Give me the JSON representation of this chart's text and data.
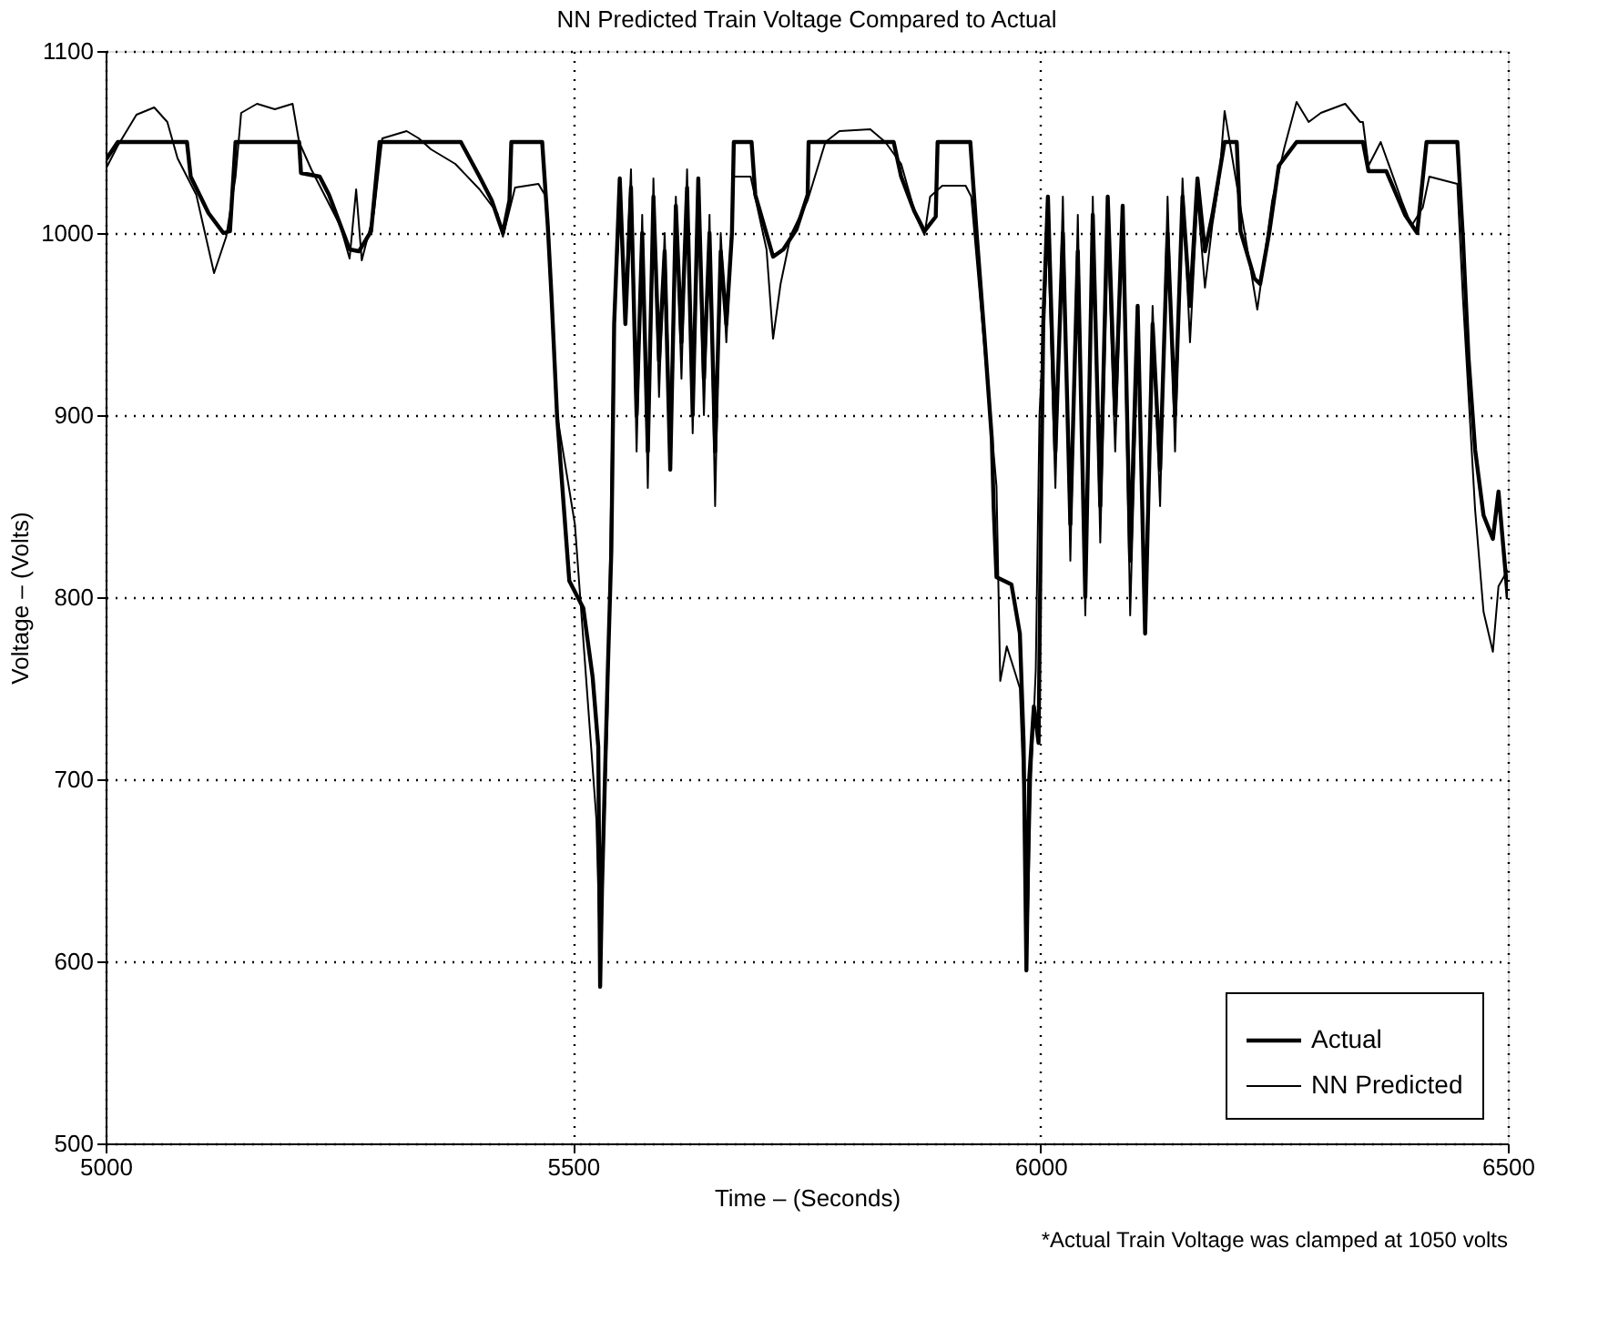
{
  "chart_data": {
    "type": "line",
    "title": "NN Predicted Train Voltage Compared to Actual",
    "xlabel": "Time – (Seconds)",
    "ylabel": "Voltage – (Volts)",
    "xlim": [
      5000,
      6500
    ],
    "xticks": [
      5000,
      5500,
      6000,
      6500
    ],
    "ylim": [
      500,
      1100
    ],
    "yticks": [
      500,
      600,
      700,
      800,
      900,
      1000,
      1100
    ],
    "grid": true,
    "legend": "bottom right",
    "line_style": "solid",
    "annotations": [
      "*Actual Train Voltage was clamped at 1050 volts"
    ],
    "series": [
      {
        "name": "Actual",
        "color": "#000000",
        "x": [
          5000,
          5013,
          5087,
          5091,
          5110,
          5126,
          5133,
          5139,
          5207,
          5209,
          5229,
          5239,
          5261,
          5271,
          5284,
          5293,
          5380,
          5400,
          5413,
          5425,
          5432,
          5434,
          5467,
          5473,
          5477,
          5483,
          5496,
          5511,
          5521,
          5527,
          5529,
          5531,
          5537,
          5541,
          5544,
          5550,
          5556,
          5562,
          5568,
          5574,
          5580,
          5586,
          5592,
          5598,
          5604,
          5610,
          5616,
          5622,
          5628,
          5634,
          5640,
          5646,
          5652,
          5658,
          5664,
          5670,
          5672,
          5691,
          5695,
          5714,
          5725,
          5739,
          5751,
          5752,
          5843,
          5851,
          5865,
          5876,
          5888,
          5890,
          5925,
          5932,
          5940,
          5948,
          5950,
          5953,
          5969,
          5978,
          5982,
          5985,
          5988,
          5993,
          5998,
          6000,
          6003,
          6008,
          6016,
          6024,
          6032,
          6040,
          6048,
          6056,
          6064,
          6072,
          6080,
          6088,
          6096,
          6104,
          6112,
          6120,
          6128,
          6136,
          6144,
          6152,
          6160,
          6168,
          6176,
          6184,
          6197,
          6210,
          6214,
          6229,
          6235,
          6245,
          6255,
          6274,
          6345,
          6351,
          6370,
          6390,
          6403,
          6413,
          6446,
          6452,
          6458,
          6465,
          6474,
          6484,
          6490,
          6500
        ],
        "values": [
          1040,
          1050,
          1050,
          1031,
          1011,
          1000,
          1001,
          1050,
          1050,
          1033,
          1031,
          1021,
          991,
          990,
          1001,
          1050,
          1050,
          1031,
          1018,
          1000,
          1018,
          1050,
          1050,
          1004,
          965,
          899,
          809,
          794,
          756,
          718,
          586,
          640,
          756,
          826,
          950,
          1030,
          950,
          1025,
          900,
          1000,
          880,
          1020,
          930,
          990,
          870,
          1015,
          940,
          1025,
          900,
          1030,
          920,
          1000,
          880,
          990,
          950,
          1000,
          1050,
          1050,
          1021,
          987,
          991,
          1002,
          1021,
          1050,
          1050,
          1031,
          1012,
          1001,
          1009,
          1050,
          1050,
          998,
          944,
          887,
          849,
          811,
          807,
          780,
          720,
          595,
          700,
          740,
          720,
          820,
          950,
          1020,
          880,
          1000,
          840,
          990,
          800,
          1010,
          850,
          1020,
          900,
          1015,
          820,
          960,
          780,
          950,
          870,
          1000,
          900,
          1020,
          960,
          1030,
          990,
          1010,
          1050,
          1050,
          1001,
          975,
          972,
          1001,
          1037,
          1050,
          1050,
          1034,
          1034,
          1010,
          1000,
          1050,
          1050,
          997,
          931,
          881,
          845,
          832,
          858,
          799
        ]
      },
      {
        "name": "NN Predicted",
        "color": "#000000",
        "x": [
          5000,
          5013,
          5033,
          5052,
          5066,
          5077,
          5097,
          5116,
          5129,
          5139,
          5145,
          5162,
          5181,
          5200,
          5207,
          5220,
          5251,
          5261,
          5268,
          5274,
          5287,
          5296,
          5322,
          5335,
          5348,
          5374,
          5400,
          5419,
          5425,
          5438,
          5463,
          5471,
          5483,
          5502,
          5525,
          5529,
          5537,
          5544,
          5550,
          5556,
          5562,
          5568,
          5574,
          5580,
          5586,
          5592,
          5598,
          5604,
          5610,
          5616,
          5622,
          5628,
          5634,
          5640,
          5646,
          5652,
          5658,
          5664,
          5670,
          5672,
          5690,
          5707,
          5714,
          5722,
          5733,
          5751,
          5770,
          5785,
          5818,
          5834,
          5851,
          5867,
          5876,
          5882,
          5895,
          5920,
          5926,
          5953,
          5957,
          5964,
          5972,
          5978,
          5983,
          5986,
          5990,
          5995,
          5999,
          6008,
          6016,
          6024,
          6032,
          6040,
          6048,
          6056,
          6064,
          6072,
          6080,
          6088,
          6096,
          6104,
          6112,
          6120,
          6128,
          6136,
          6144,
          6152,
          6160,
          6168,
          6176,
          6184,
          6191,
          6197,
          6232,
          6248,
          6261,
          6274,
          6287,
          6300,
          6326,
          6342,
          6345,
          6351,
          6364,
          6387,
          6397,
          6409,
          6416,
          6446,
          6452,
          6465,
          6474,
          6484,
          6490,
          6500
        ],
        "values": [
          1035,
          1048,
          1065,
          1069,
          1061,
          1041,
          1021,
          978,
          998,
          1031,
          1066,
          1071,
          1068,
          1071,
          1050,
          1035,
          1004,
          986,
          1024,
          985,
          1011,
          1052,
          1056,
          1052,
          1046,
          1038,
          1024,
          1011,
          998,
          1025,
          1027,
          1020,
          900,
          840,
          678,
          601,
          737,
          958,
          1010,
          960,
          1035,
          880,
          1010,
          860,
          1030,
          910,
          1000,
          890,
          1020,
          920,
          1035,
          890,
          1020,
          900,
          1010,
          850,
          1000,
          940,
          1005,
          1031,
          1031,
          991,
          942,
          972,
          999,
          1018,
          1050,
          1056,
          1057,
          1050,
          1038,
          1009,
          999,
          1020,
          1026,
          1026,
          1020,
          861,
          754,
          773,
          760,
          750,
          680,
          610,
          700,
          760,
          900,
          1000,
          860,
          1020,
          820,
          1010,
          790,
          1020,
          830,
          1000,
          880,
          1010,
          790,
          940,
          800,
          960,
          850,
          1020,
          880,
          1030,
          940,
          1020,
          970,
          1005,
          1028,
          1067,
          958,
          1018,
          1047,
          1072,
          1061,
          1066,
          1071,
          1061,
          1061,
          1037,
          1050,
          1017,
          1004,
          1014,
          1031,
          1027,
          964,
          848,
          792,
          770,
          806,
          815
        ]
      }
    ]
  }
}
